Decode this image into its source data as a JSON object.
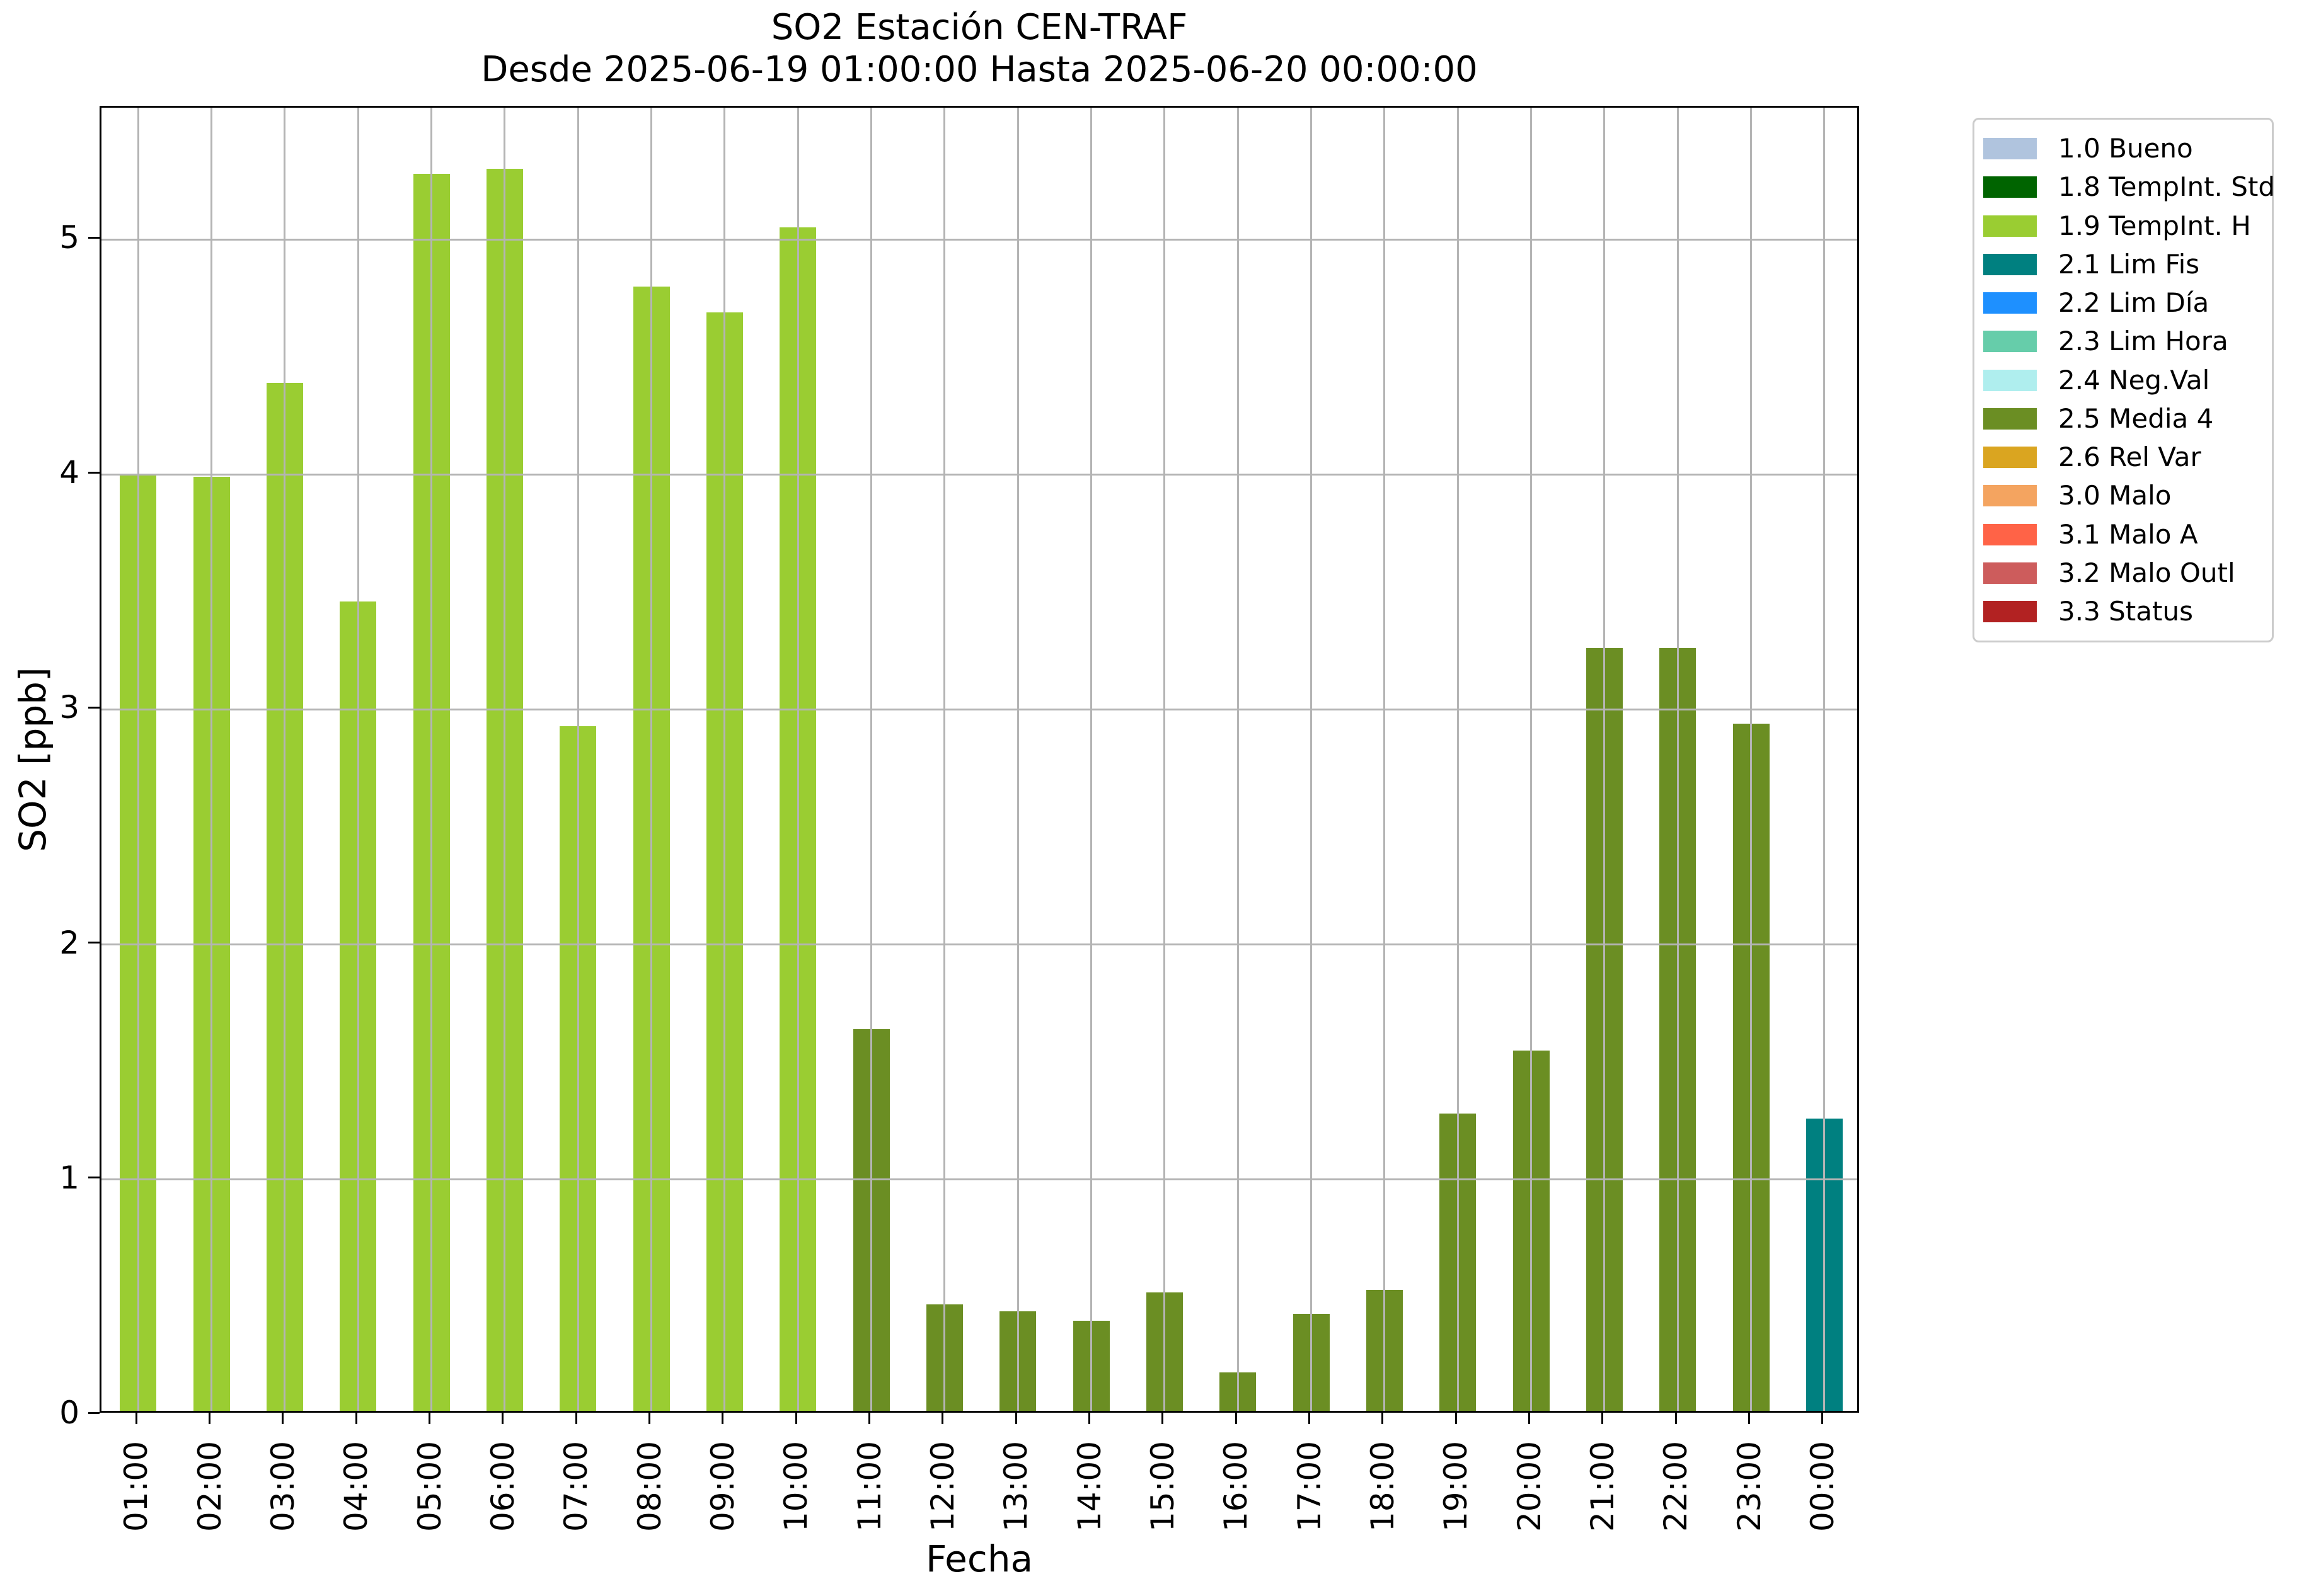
{
  "chart_data": {
    "type": "bar",
    "title": "SO2 Estación CEN-TRAF",
    "subtitle": "Desde 2025-06-19 01:00:00 Hasta 2025-06-20 00:00:00",
    "xlabel": "Fecha",
    "ylabel": "SO2 [ppb]",
    "ylim": [
      0,
      5.56
    ],
    "yticks": [
      0,
      1,
      2,
      3,
      4,
      5
    ],
    "grid": true,
    "categories": [
      "01:00",
      "02:00",
      "03:00",
      "04:00",
      "05:00",
      "06:00",
      "07:00",
      "08:00",
      "09:00",
      "10:00",
      "11:00",
      "12:00",
      "13:00",
      "14:00",
      "15:00",
      "16:00",
      "17:00",
      "18:00",
      "19:00",
      "20:00",
      "21:00",
      "22:00",
      "23:00",
      "00:00"
    ],
    "values": [
      4.0,
      3.99,
      4.39,
      3.46,
      5.28,
      5.3,
      2.93,
      4.8,
      4.69,
      5.05,
      1.64,
      0.47,
      0.44,
      0.4,
      0.52,
      0.18,
      0.43,
      0.53,
      1.28,
      1.55,
      3.26,
      3.26,
      2.94,
      1.26
    ],
    "bar_colors": [
      "#9acd32",
      "#9acd32",
      "#9acd32",
      "#9acd32",
      "#9acd32",
      "#9acd32",
      "#9acd32",
      "#9acd32",
      "#9acd32",
      "#9acd32",
      "#6b8e23",
      "#6b8e23",
      "#6b8e23",
      "#6b8e23",
      "#6b8e23",
      "#6b8e23",
      "#6b8e23",
      "#6b8e23",
      "#6b8e23",
      "#6b8e23",
      "#6b8e23",
      "#6b8e23",
      "#6b8e23",
      "#008080"
    ],
    "legend": {
      "position": "outside-right",
      "entries": [
        {
          "label": "1.0 Bueno",
          "color": "#b0c4de"
        },
        {
          "label": "1.8 TempInt. Std",
          "color": "#006400"
        },
        {
          "label": "1.9 TempInt. H",
          "color": "#9acd32"
        },
        {
          "label": "2.1 Lim Fis",
          "color": "#008080"
        },
        {
          "label": "2.2 Lim Día",
          "color": "#1e90ff"
        },
        {
          "label": "2.3 Lim Hora",
          "color": "#66cdaa"
        },
        {
          "label": "2.4 Neg.Val",
          "color": "#afeeee"
        },
        {
          "label": "2.5 Media 4",
          "color": "#6b8e23"
        },
        {
          "label": "2.6 Rel Var",
          "color": "#daa520"
        },
        {
          "label": "3.0 Malo",
          "color": "#f4a460"
        },
        {
          "label": "3.1 Malo A",
          "color": "#ff6347"
        },
        {
          "label": "3.2 Malo Outl",
          "color": "#cd5c5c"
        },
        {
          "label": "3.3 Status",
          "color": "#b22222"
        }
      ]
    }
  }
}
